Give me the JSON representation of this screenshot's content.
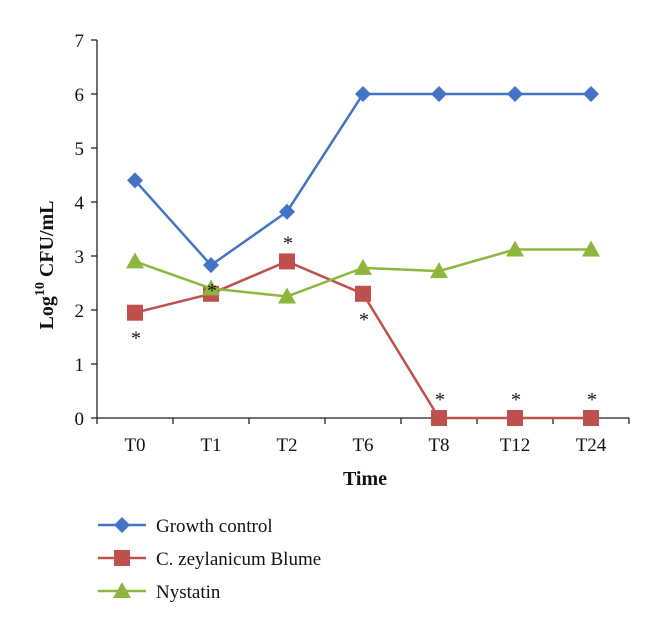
{
  "chart_data": {
    "type": "line",
    "xlabel": "Time",
    "ylabel_base": "Log",
    "ylabel_sup": "10",
    "ylabel_rest": " CFU/mL",
    "ylim": [
      0,
      7
    ],
    "yticks": [
      "0",
      "1",
      "2",
      "3",
      "4",
      "5",
      "6",
      "7"
    ],
    "categories": [
      "T0",
      "T1",
      "T2",
      "T6",
      "T8",
      "T12",
      "T24"
    ],
    "grid": false,
    "legend_position": "bottom",
    "series": [
      {
        "name": "Growth control",
        "color": "#4472C4",
        "marker": "diamond",
        "values": [
          4.4,
          2.83,
          3.82,
          6.0,
          6.0,
          6.0,
          6.0
        ]
      },
      {
        "name": "C. zeylanicum Blume",
        "color": "#C0504D",
        "marker": "square",
        "values": [
          1.95,
          2.3,
          2.9,
          2.3,
          0,
          0,
          0
        ]
      },
      {
        "name": "Nystatin",
        "color": "#8DB63C",
        "marker": "triangle",
        "values": [
          2.9,
          2.4,
          2.25,
          2.78,
          2.72,
          3.12,
          3.12
        ]
      }
    ],
    "annotations": [
      {
        "text": "*",
        "category_index": 0,
        "y": 1.95,
        "position": "below"
      },
      {
        "text": "*",
        "category_index": 1,
        "y": 2.83,
        "position": "below"
      },
      {
        "text": "*",
        "category_index": 2,
        "y": 2.9,
        "position": "above"
      },
      {
        "text": "*",
        "category_index": 3,
        "y": 2.3,
        "position": "below"
      },
      {
        "text": "*",
        "category_index": 4,
        "y": 0,
        "position": "above"
      },
      {
        "text": "*",
        "category_index": 5,
        "y": 0,
        "position": "above"
      },
      {
        "text": "*",
        "category_index": 6,
        "y": 0,
        "position": "above"
      }
    ]
  }
}
